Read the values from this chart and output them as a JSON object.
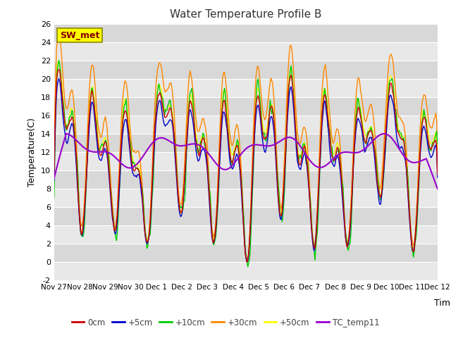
{
  "title": "Water Temperature Profile B",
  "xlabel": "Time",
  "ylabel": "Temperature(C)",
  "ylim": [
    -2,
    26
  ],
  "fig_bg_color": "#ffffff",
  "plot_bg_color": "#d8d8d8",
  "alt_band_color": "#e8e8e8",
  "grid_color": "#ffffff",
  "series_colors": {
    "0cm": "#cc0000",
    "+5cm": "#0000cc",
    "+10cm": "#00cc00",
    "+30cm": "#ff8800",
    "+50cm": "#ffff00",
    "TC_temp11": "#9900cc"
  },
  "annotation_text": "SW_met",
  "annotation_bg": "#ffff00",
  "annotation_border": "#888800",
  "annotation_text_color": "#880000",
  "tick_dates": [
    "Nov 27",
    "Nov 28",
    "Nov 29",
    "Nov 30",
    "Dec 1",
    "Dec 2",
    "Dec 3",
    "Dec 4",
    "Dec 5",
    "Dec 6",
    "Dec 7",
    "Dec 8",
    "Dec 9",
    "Dec 10",
    "Dec 11",
    "Dec 12"
  ],
  "yticks": [
    -2,
    0,
    2,
    4,
    6,
    8,
    10,
    12,
    14,
    16,
    18,
    20,
    22,
    24,
    26
  ],
  "num_points": 480
}
